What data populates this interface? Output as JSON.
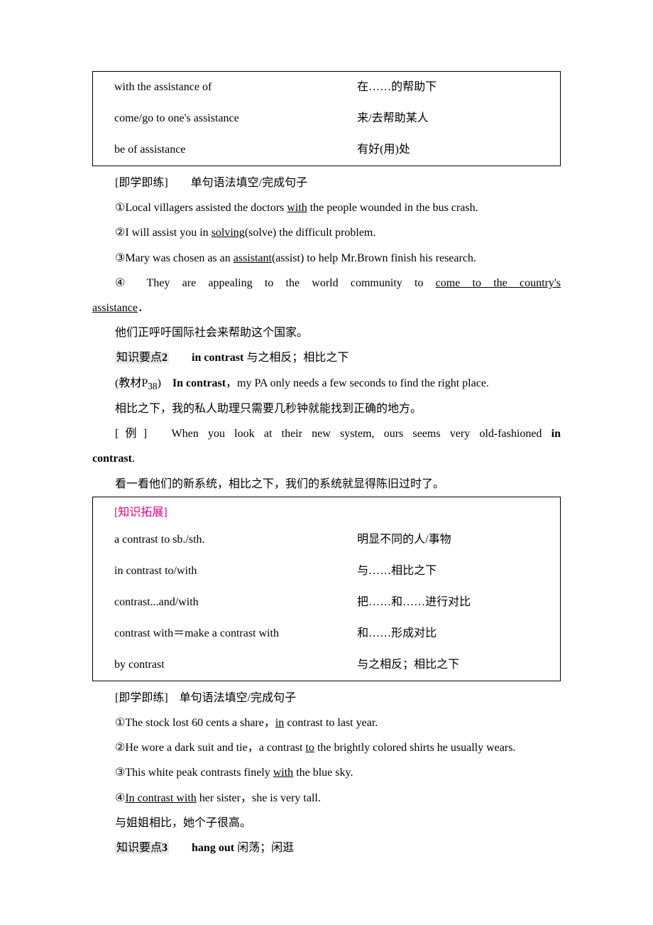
{
  "box1": {
    "rows": [
      {
        "left": "with the assistance of",
        "right": "在……的帮助下"
      },
      {
        "left": "come/go to one's assistance",
        "right": "来/去帮助某人"
      },
      {
        "left": "be of assistance",
        "right": "有好(用)处"
      }
    ]
  },
  "sec1": {
    "label": "[即学即练]　　单句语法填空/完成句子",
    "item1_pre": "①Local villagers assisted the doctors ",
    "item1_u": "with",
    "item1_post": " the people wounded in the bus crash.",
    "item2_pre": "②I will assist you in ",
    "item2_u": "solving",
    "item2_post": "(solve) the difficult problem.",
    "item3_pre": "③Mary was chosen as an ",
    "item3_u": "assistant",
    "item3_post": "(assist) to help Mr.Brown finish his research.",
    "item4_pre": "④ They are appealing to the world community to ",
    "item4_u1": "come to the country's",
    "item4_u2": "assistance",
    "item4_post": "．",
    "item4_cn": "他们正呼吁国际社会来帮助这个国家。"
  },
  "kp2": {
    "label_pre": "知识要点",
    "label_num": "2",
    "title_en": "in contrast",
    "title_cn": " 与之相反；相比之下",
    "textbook_pre": "(教材P",
    "textbook_sub": "38",
    "textbook_post": ")　",
    "sent_bold": "In contrast",
    "sent_rest": "，my PA only needs a few seconds to find the right place.",
    "sent_cn": "相比之下，我的私人助理只需要几秒钟就能找到正确的地方。",
    "ex_label": "[例]　When you look at their new system, ours seems very old‐fashioned ",
    "ex_bold": "in contrast",
    "ex_post": ".",
    "ex_cn": "看一看他们的新系统，相比之下，我们的系统就显得陈旧过时了。"
  },
  "box2": {
    "title": "[知识拓展]",
    "rows": [
      {
        "left": "a contrast to sb./sth.",
        "right": "明显不同的人/事物"
      },
      {
        "left": "in contrast to/with",
        "right": "与……相比之下"
      },
      {
        "left": "contrast...and/with",
        "right": "把……和……进行对比"
      },
      {
        "left": "contrast with＝make a contrast with",
        "right": "和……形成对比"
      },
      {
        "left": "by contrast",
        "right": "与之相反；相比之下"
      }
    ]
  },
  "sec2": {
    "label": "[即学即练]　单句语法填空/完成句子",
    "item1_pre": "①The stock lost 60 cents a share，",
    "item1_u": "in",
    "item1_post": " contrast to last year.",
    "item2_pre": "②He wore a dark suit and tie，a contrast ",
    "item2_u": "to",
    "item2_post": " the brightly colored shirts he usually wears.",
    "item3_pre": "③This white peak contrasts finely ",
    "item3_u": "with",
    "item3_post": " the blue sky.",
    "item4_pre": "④",
    "item4_u": "In contrast with",
    "item4_post": " her sister，she is very tall.",
    "item4_cn": "与姐姐相比，她个子很高。"
  },
  "kp3": {
    "label_pre": "知识要点",
    "label_num": "3",
    "title_en": "hang out",
    "title_cn": " 闲荡；闲逛"
  }
}
